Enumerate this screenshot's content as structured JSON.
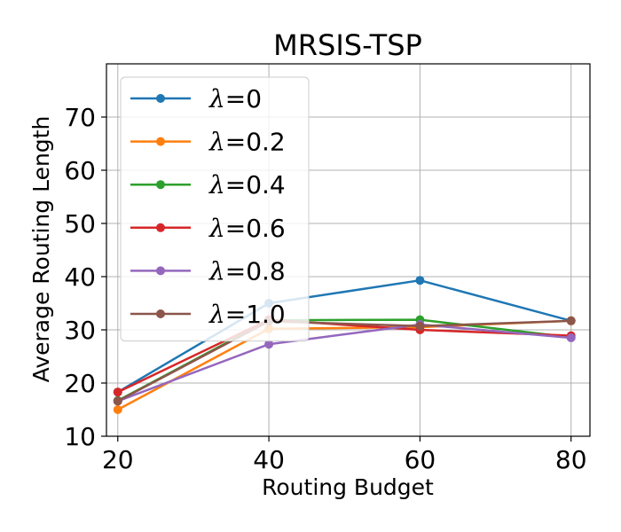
{
  "chart_data": {
    "type": "line",
    "title": "MRSIS-TSP",
    "xlabel": "Routing Budget",
    "ylabel": "Average Routing Length",
    "x": [
      20,
      40,
      60,
      80
    ],
    "xlim": [
      18.5,
      82.5
    ],
    "ylim": [
      10,
      80
    ],
    "xticks": [
      20,
      40,
      60,
      80
    ],
    "yticks": [
      10,
      20,
      30,
      40,
      50,
      60,
      70
    ],
    "grid": true,
    "legend": "upper-left",
    "series": [
      {
        "name": "λ=0",
        "symbol": "λ",
        "suffix": "=0",
        "color": "#1f77b4",
        "values": [
          18.3,
          35.0,
          39.3,
          31.7
        ]
      },
      {
        "name": "λ=0.2",
        "symbol": "λ",
        "suffix": "=0.2",
        "color": "#ff7f0e",
        "values": [
          15.0,
          30.2,
          30.5,
          31.7
        ]
      },
      {
        "name": "λ=0.4",
        "symbol": "λ",
        "suffix": "=0.4",
        "color": "#2ca02c",
        "values": [
          16.7,
          31.8,
          31.9,
          28.6
        ]
      },
      {
        "name": "λ=0.6",
        "symbol": "λ",
        "suffix": "=0.6",
        "color": "#d62728",
        "values": [
          18.3,
          31.9,
          30.0,
          28.9
        ]
      },
      {
        "name": "λ=0.8",
        "symbol": "λ",
        "suffix": "=0.8",
        "color": "#9467bd",
        "values": [
          16.6,
          27.3,
          31.0,
          28.5
        ]
      },
      {
        "name": "λ=1.0",
        "symbol": "λ",
        "suffix": "=1.0",
        "color": "#8c564b",
        "values": [
          16.6,
          31.6,
          30.7,
          31.7
        ]
      }
    ]
  }
}
